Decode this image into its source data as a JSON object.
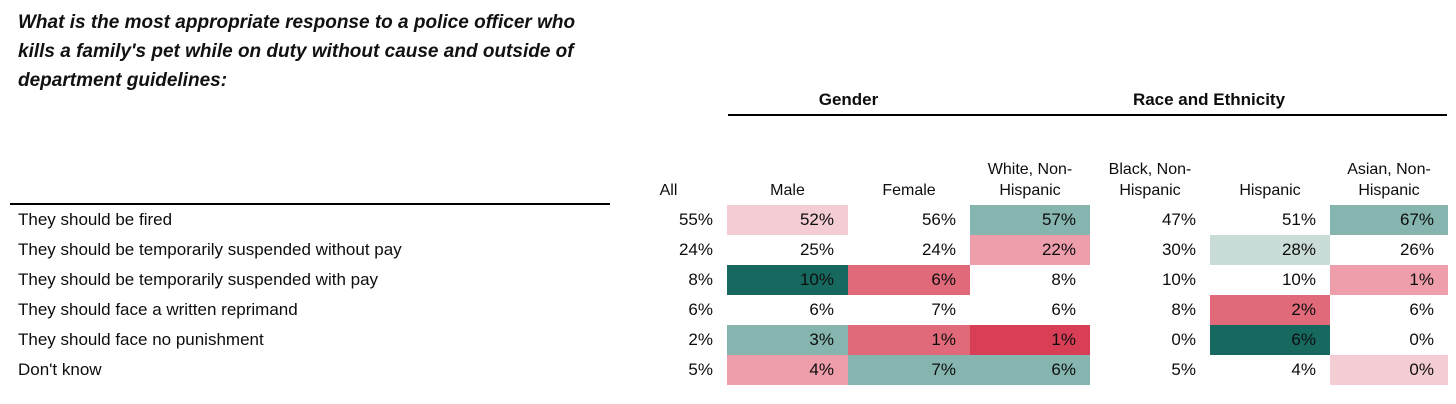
{
  "question": "What is the most appropriate response to a police officer who kills a family's pet while on duty without cause and outside of department guidelines:",
  "colors": {
    "dark_teal": "#17695f",
    "medium_teal": "#85b5ae",
    "light_teal": "#cadcd7",
    "light_pink": "#f4ccd4",
    "medium_pink": "#ee9dab",
    "medium_red": "#e0697a",
    "dark_red": "#d83f57"
  },
  "table": {
    "group_headers": [
      {
        "label": "Gender"
      },
      {
        "label": "Race and Ethnicity"
      }
    ],
    "columns": [
      "All",
      "Male",
      "Female",
      "White, Non-Hispanic",
      "Black, Non-Hispanic",
      "Hispanic",
      "Asian, Non-Hispanic"
    ],
    "rows": [
      {
        "label": "They should be fired",
        "cells": [
          {
            "value": "55%",
            "bg": ""
          },
          {
            "value": "52%",
            "bg": "#f4ccd4"
          },
          {
            "value": "56%",
            "bg": ""
          },
          {
            "value": "57%",
            "bg": "#85b5ae"
          },
          {
            "value": "47%",
            "bg": ""
          },
          {
            "value": "51%",
            "bg": ""
          },
          {
            "value": "67%",
            "bg": "#85b5ae"
          }
        ]
      },
      {
        "label": "They should be temporarily suspended without pay",
        "cells": [
          {
            "value": "24%",
            "bg": ""
          },
          {
            "value": "25%",
            "bg": ""
          },
          {
            "value": "24%",
            "bg": ""
          },
          {
            "value": "22%",
            "bg": "#ee9dab"
          },
          {
            "value": "30%",
            "bg": ""
          },
          {
            "value": "28%",
            "bg": "#cadcd7"
          },
          {
            "value": "26%",
            "bg": ""
          }
        ]
      },
      {
        "label": "They should be temporarily suspended with pay",
        "cells": [
          {
            "value": "8%",
            "bg": ""
          },
          {
            "value": "10%",
            "bg": "#17695f"
          },
          {
            "value": "6%",
            "bg": "#e0697a"
          },
          {
            "value": "8%",
            "bg": ""
          },
          {
            "value": "10%",
            "bg": ""
          },
          {
            "value": "10%",
            "bg": ""
          },
          {
            "value": "1%",
            "bg": "#ee9dab"
          }
        ]
      },
      {
        "label": "They should face a written reprimand",
        "cells": [
          {
            "value": "6%",
            "bg": ""
          },
          {
            "value": "6%",
            "bg": ""
          },
          {
            "value": "7%",
            "bg": ""
          },
          {
            "value": "6%",
            "bg": ""
          },
          {
            "value": "8%",
            "bg": ""
          },
          {
            "value": "2%",
            "bg": "#e0697a"
          },
          {
            "value": "6%",
            "bg": ""
          }
        ]
      },
      {
        "label": "They should face no punishment",
        "cells": [
          {
            "value": "2%",
            "bg": ""
          },
          {
            "value": "3%",
            "bg": "#85b5ae"
          },
          {
            "value": "1%",
            "bg": "#e0697a"
          },
          {
            "value": "1%",
            "bg": "#d83f57"
          },
          {
            "value": "0%",
            "bg": ""
          },
          {
            "value": "6%",
            "bg": "#17695f"
          },
          {
            "value": "0%",
            "bg": ""
          }
        ]
      },
      {
        "label": "Don't know",
        "cells": [
          {
            "value": "5%",
            "bg": ""
          },
          {
            "value": "4%",
            "bg": "#ee9dab"
          },
          {
            "value": "7%",
            "bg": "#85b5ae"
          },
          {
            "value": "6%",
            "bg": "#85b5ae"
          },
          {
            "value": "5%",
            "bg": ""
          },
          {
            "value": "4%",
            "bg": ""
          },
          {
            "value": "0%",
            "bg": "#f4ccd4"
          }
        ]
      }
    ]
  },
  "chart_data": {
    "type": "table",
    "title": "What is the most appropriate response to a police officer who kills a family's pet while on duty without cause and outside of department guidelines:",
    "column_groups": [
      {
        "label": "Gender",
        "columns": [
          "Male",
          "Female"
        ]
      },
      {
        "label": "Race and Ethnicity",
        "columns": [
          "White, Non-Hispanic",
          "Black, Non-Hispanic",
          "Hispanic",
          "Asian, Non-Hispanic"
        ]
      }
    ],
    "categories": [
      "They should be fired",
      "They should be temporarily suspended without pay",
      "They should be temporarily suspended with pay",
      "They should face a written reprimand",
      "They should face no punishment",
      "Don't know"
    ],
    "series": [
      {
        "name": "All",
        "values": [
          55,
          24,
          8,
          6,
          2,
          5
        ]
      },
      {
        "name": "Male",
        "values": [
          52,
          25,
          10,
          6,
          3,
          4
        ]
      },
      {
        "name": "Female",
        "values": [
          56,
          24,
          6,
          7,
          1,
          7
        ]
      },
      {
        "name": "White, Non-Hispanic",
        "values": [
          57,
          22,
          8,
          6,
          1,
          6
        ]
      },
      {
        "name": "Black, Non-Hispanic",
        "values": [
          47,
          30,
          10,
          8,
          0,
          5
        ]
      },
      {
        "name": "Hispanic",
        "values": [
          51,
          28,
          10,
          2,
          6,
          4
        ]
      },
      {
        "name": "Asian, Non-Hispanic",
        "values": [
          67,
          26,
          1,
          6,
          0,
          0
        ]
      }
    ],
    "units": "percent",
    "layout_hints": "crosstab table with conditional heatmap shading (teal = notable high/positive deviation, pink/red = notable low/negative deviation)"
  }
}
